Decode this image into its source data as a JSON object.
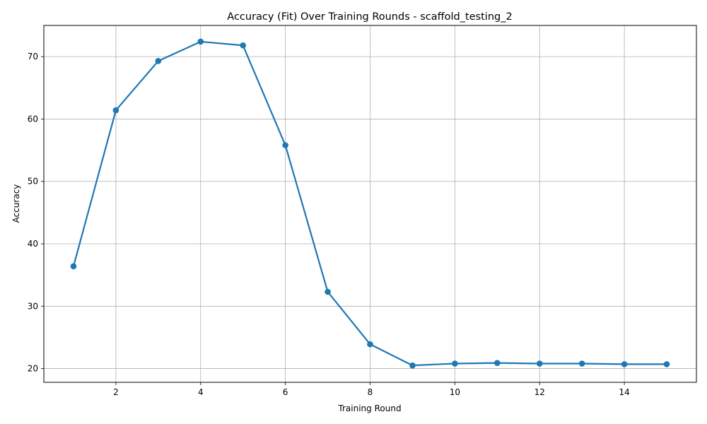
{
  "chart_data": {
    "type": "line",
    "title": "Accuracy (Fit) Over Training Rounds  - scaffold_testing_2",
    "xlabel": "Training Round",
    "ylabel": "Accuracy",
    "xlim": [
      0.3,
      15.7
    ],
    "ylim": [
      17.8,
      75.0
    ],
    "xticks": [
      2,
      4,
      6,
      8,
      10,
      12,
      14
    ],
    "yticks": [
      20,
      30,
      40,
      50,
      60,
      70
    ],
    "grid": true,
    "series": [
      {
        "color": "#1f77b4",
        "marker": "circle",
        "x": [
          1,
          2,
          3,
          4,
          5,
          6,
          7,
          8,
          9,
          10,
          11,
          12,
          13,
          14,
          15
        ],
        "y": [
          36.4,
          61.4,
          69.3,
          72.4,
          71.8,
          55.8,
          32.3,
          23.9,
          20.5,
          20.8,
          20.9,
          20.8,
          20.8,
          20.7,
          20.7
        ]
      }
    ]
  }
}
